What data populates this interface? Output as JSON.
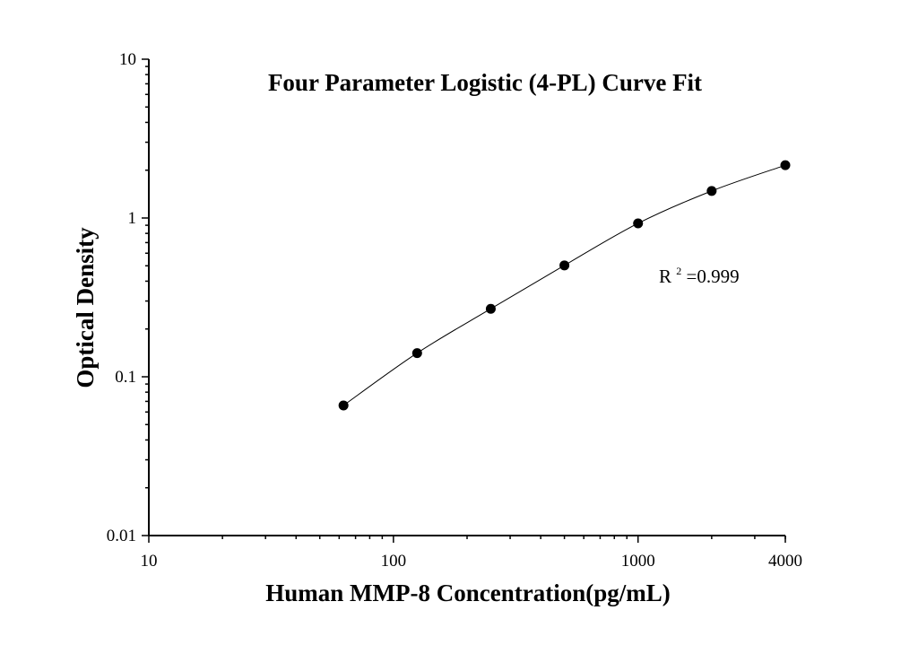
{
  "chart_data": {
    "type": "scatter",
    "title": "Four Parameter Logistic (4-PL) Curve Fit",
    "xlabel": "Human MMP-8 Concentration(pg/mL)",
    "ylabel": "Optical Density",
    "xscale": "log",
    "yscale": "log",
    "xlim": [
      10,
      4000
    ],
    "ylim": [
      0.01,
      10
    ],
    "x_ticks": [
      {
        "value": 10,
        "label": "10"
      },
      {
        "value": 100,
        "label": "100"
      },
      {
        "value": 1000,
        "label": "1000"
      },
      {
        "value": 4000,
        "label": "4000"
      }
    ],
    "y_ticks": [
      {
        "value": 0.01,
        "label": "0.01"
      },
      {
        "value": 0.1,
        "label": "0.1"
      },
      {
        "value": 1,
        "label": "1"
      },
      {
        "value": 10,
        "label": "10"
      }
    ],
    "grid": false,
    "series": [
      {
        "points": [
          {
            "x": 62.5,
            "y": 0.066
          },
          {
            "x": 125,
            "y": 0.141
          },
          {
            "x": 250,
            "y": 0.268
          },
          {
            "x": 500,
            "y": 0.503
          },
          {
            "x": 1000,
            "y": 0.925
          },
          {
            "x": 2000,
            "y": 1.48
          },
          {
            "x": 4000,
            "y": 2.15
          }
        ],
        "fit": "4-PL",
        "marker_color": "#000000",
        "line_color": "#000000"
      }
    ],
    "annotations": [
      {
        "base": "R",
        "superscript": "2",
        "text": "=0.999"
      }
    ]
  }
}
